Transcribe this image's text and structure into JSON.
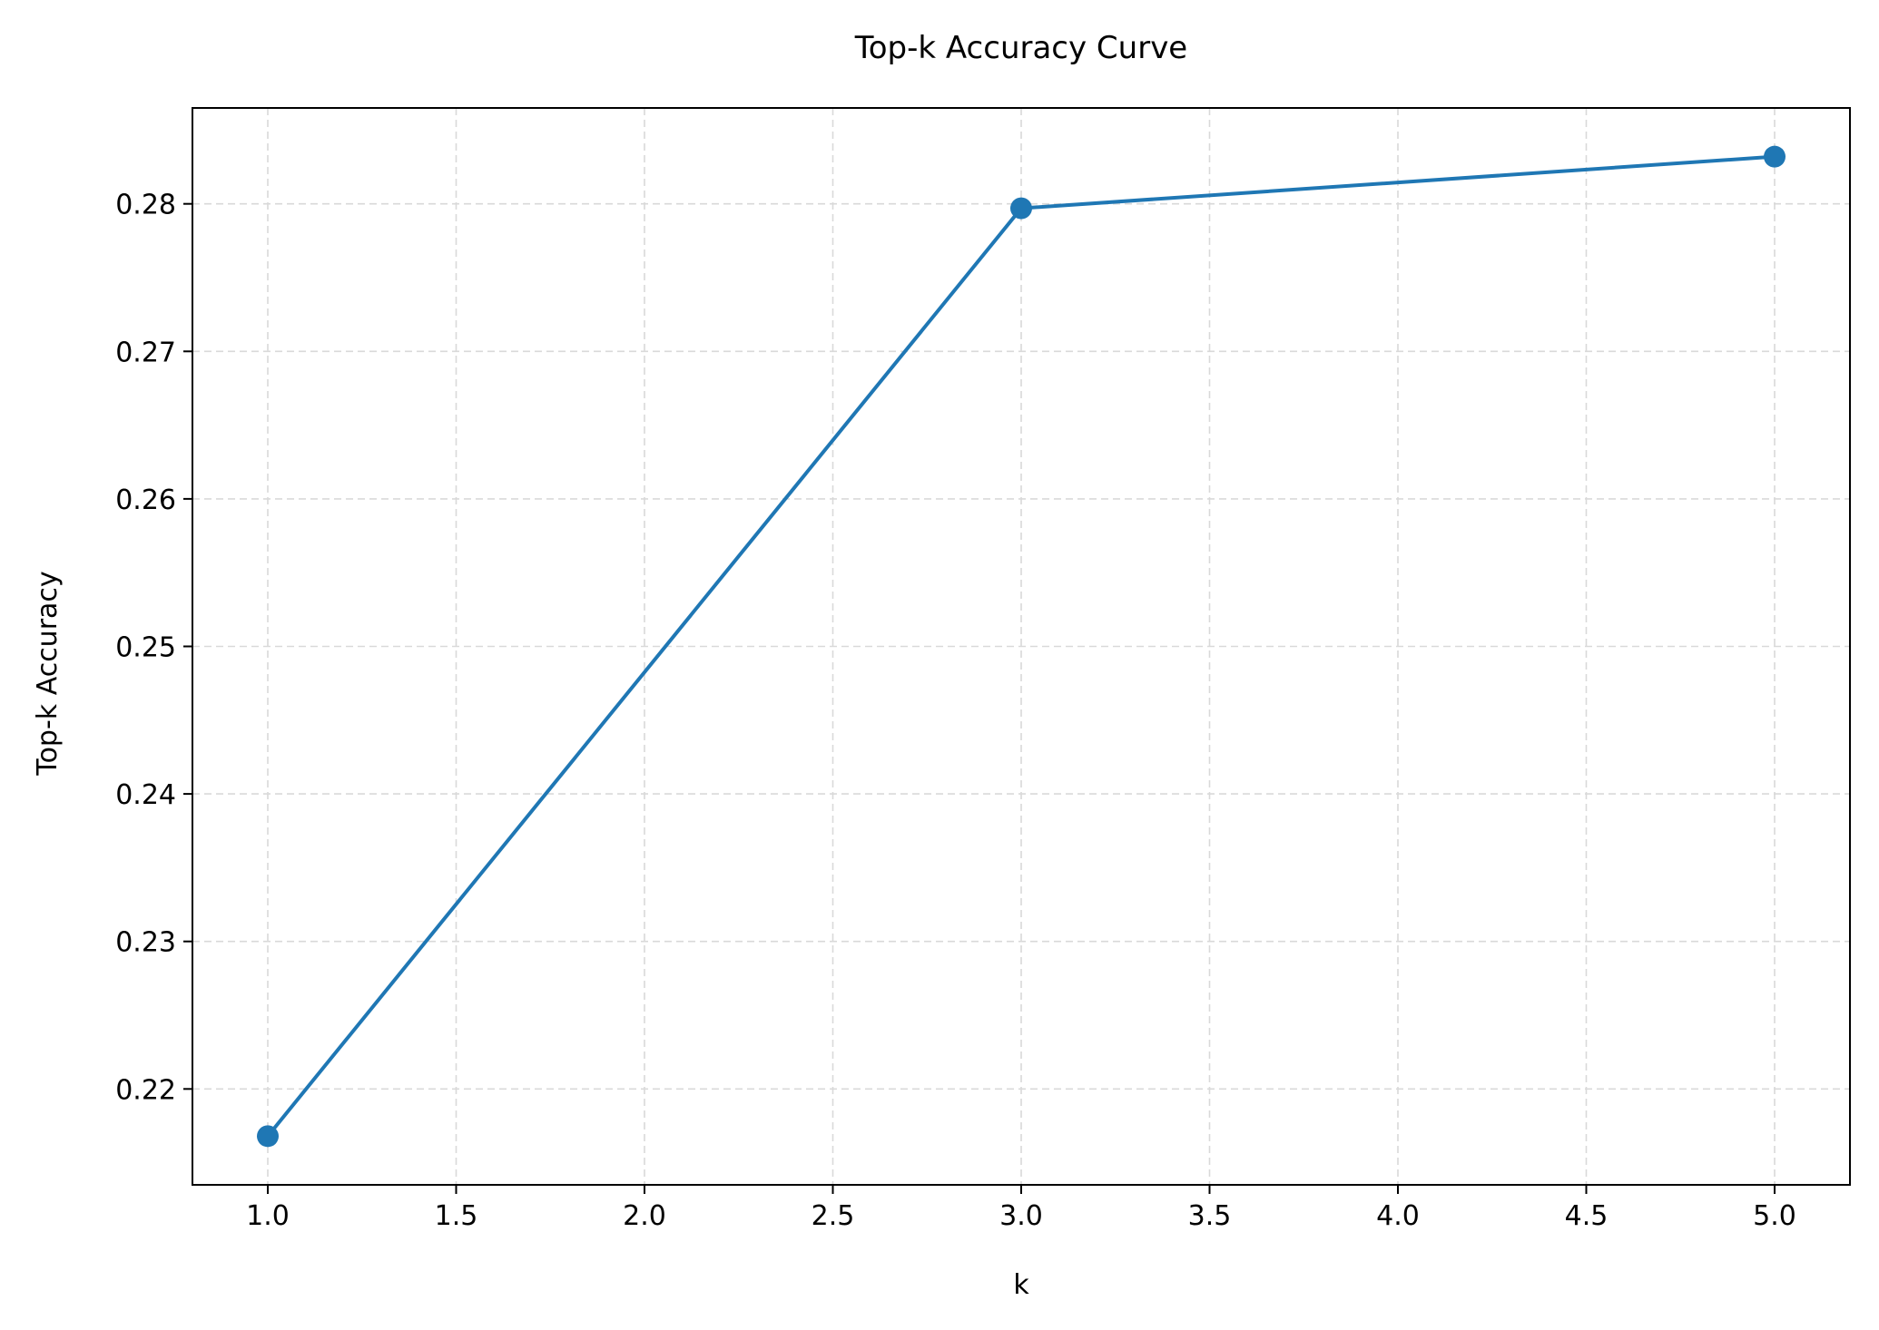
{
  "chart_data": {
    "type": "line",
    "title": "Top-k Accuracy Curve",
    "xlabel": "k",
    "ylabel": "Top-k Accuracy",
    "x": [
      1,
      3,
      5
    ],
    "series": [
      {
        "values": [
          0.2168,
          0.2797,
          0.2832
        ],
        "color": "#1f77b4",
        "marker": "circle"
      }
    ],
    "xlim": [
      0.8,
      5.2
    ],
    "ylim": [
      0.2135,
      0.2865
    ],
    "xticks": [
      1.0,
      1.5,
      2.0,
      2.5,
      3.0,
      3.5,
      4.0,
      4.5,
      5.0
    ],
    "xtick_labels": [
      "1.0",
      "1.5",
      "2.0",
      "2.5",
      "3.0",
      "3.5",
      "4.0",
      "4.5",
      "5.0"
    ],
    "yticks": [
      0.22,
      0.23,
      0.24,
      0.25,
      0.26,
      0.27,
      0.28
    ],
    "ytick_labels": [
      "0.22",
      "0.23",
      "0.24",
      "0.25",
      "0.26",
      "0.27",
      "0.28"
    ],
    "grid": true,
    "grid_style": "dashed",
    "legend": "none"
  }
}
